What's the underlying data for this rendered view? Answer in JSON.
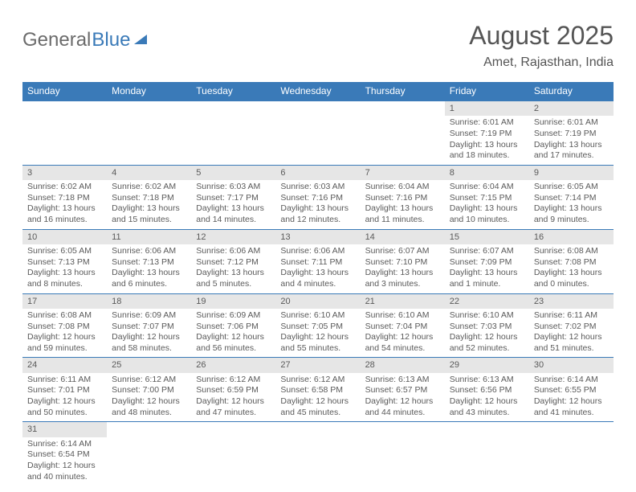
{
  "logo": {
    "part1": "General",
    "part2": "Blue"
  },
  "header": {
    "month": "August 2025",
    "location": "Amet, Rajasthan, India"
  },
  "colors": {
    "header_bg": "#3a7ab8",
    "header_text": "#ffffff",
    "daynum_bg": "#e6e6e6",
    "row_border": "#3a7ab8",
    "text": "#5a5a5a",
    "logo_gray": "#6b6b6b",
    "logo_blue": "#3a7ab8"
  },
  "fonts": {
    "month_size_pt": 24,
    "location_size_pt": 12,
    "dayheader_size_pt": 9,
    "body_size_pt": 8
  },
  "calendar": {
    "day_headers": [
      "Sunday",
      "Monday",
      "Tuesday",
      "Wednesday",
      "Thursday",
      "Friday",
      "Saturday"
    ],
    "weeks": [
      [
        null,
        null,
        null,
        null,
        null,
        {
          "n": "1",
          "sunrise": "6:01 AM",
          "sunset": "7:19 PM",
          "daylight": "13 hours and 18 minutes."
        },
        {
          "n": "2",
          "sunrise": "6:01 AM",
          "sunset": "7:19 PM",
          "daylight": "13 hours and 17 minutes."
        }
      ],
      [
        {
          "n": "3",
          "sunrise": "6:02 AM",
          "sunset": "7:18 PM",
          "daylight": "13 hours and 16 minutes."
        },
        {
          "n": "4",
          "sunrise": "6:02 AM",
          "sunset": "7:18 PM",
          "daylight": "13 hours and 15 minutes."
        },
        {
          "n": "5",
          "sunrise": "6:03 AM",
          "sunset": "7:17 PM",
          "daylight": "13 hours and 14 minutes."
        },
        {
          "n": "6",
          "sunrise": "6:03 AM",
          "sunset": "7:16 PM",
          "daylight": "13 hours and 12 minutes."
        },
        {
          "n": "7",
          "sunrise": "6:04 AM",
          "sunset": "7:16 PM",
          "daylight": "13 hours and 11 minutes."
        },
        {
          "n": "8",
          "sunrise": "6:04 AM",
          "sunset": "7:15 PM",
          "daylight": "13 hours and 10 minutes."
        },
        {
          "n": "9",
          "sunrise": "6:05 AM",
          "sunset": "7:14 PM",
          "daylight": "13 hours and 9 minutes."
        }
      ],
      [
        {
          "n": "10",
          "sunrise": "6:05 AM",
          "sunset": "7:13 PM",
          "daylight": "13 hours and 8 minutes."
        },
        {
          "n": "11",
          "sunrise": "6:06 AM",
          "sunset": "7:13 PM",
          "daylight": "13 hours and 6 minutes."
        },
        {
          "n": "12",
          "sunrise": "6:06 AM",
          "sunset": "7:12 PM",
          "daylight": "13 hours and 5 minutes."
        },
        {
          "n": "13",
          "sunrise": "6:06 AM",
          "sunset": "7:11 PM",
          "daylight": "13 hours and 4 minutes."
        },
        {
          "n": "14",
          "sunrise": "6:07 AM",
          "sunset": "7:10 PM",
          "daylight": "13 hours and 3 minutes."
        },
        {
          "n": "15",
          "sunrise": "6:07 AM",
          "sunset": "7:09 PM",
          "daylight": "13 hours and 1 minute."
        },
        {
          "n": "16",
          "sunrise": "6:08 AM",
          "sunset": "7:08 PM",
          "daylight": "13 hours and 0 minutes."
        }
      ],
      [
        {
          "n": "17",
          "sunrise": "6:08 AM",
          "sunset": "7:08 PM",
          "daylight": "12 hours and 59 minutes."
        },
        {
          "n": "18",
          "sunrise": "6:09 AM",
          "sunset": "7:07 PM",
          "daylight": "12 hours and 58 minutes."
        },
        {
          "n": "19",
          "sunrise": "6:09 AM",
          "sunset": "7:06 PM",
          "daylight": "12 hours and 56 minutes."
        },
        {
          "n": "20",
          "sunrise": "6:10 AM",
          "sunset": "7:05 PM",
          "daylight": "12 hours and 55 minutes."
        },
        {
          "n": "21",
          "sunrise": "6:10 AM",
          "sunset": "7:04 PM",
          "daylight": "12 hours and 54 minutes."
        },
        {
          "n": "22",
          "sunrise": "6:10 AM",
          "sunset": "7:03 PM",
          "daylight": "12 hours and 52 minutes."
        },
        {
          "n": "23",
          "sunrise": "6:11 AM",
          "sunset": "7:02 PM",
          "daylight": "12 hours and 51 minutes."
        }
      ],
      [
        {
          "n": "24",
          "sunrise": "6:11 AM",
          "sunset": "7:01 PM",
          "daylight": "12 hours and 50 minutes."
        },
        {
          "n": "25",
          "sunrise": "6:12 AM",
          "sunset": "7:00 PM",
          "daylight": "12 hours and 48 minutes."
        },
        {
          "n": "26",
          "sunrise": "6:12 AM",
          "sunset": "6:59 PM",
          "daylight": "12 hours and 47 minutes."
        },
        {
          "n": "27",
          "sunrise": "6:12 AM",
          "sunset": "6:58 PM",
          "daylight": "12 hours and 45 minutes."
        },
        {
          "n": "28",
          "sunrise": "6:13 AM",
          "sunset": "6:57 PM",
          "daylight": "12 hours and 44 minutes."
        },
        {
          "n": "29",
          "sunrise": "6:13 AM",
          "sunset": "6:56 PM",
          "daylight": "12 hours and 43 minutes."
        },
        {
          "n": "30",
          "sunrise": "6:14 AM",
          "sunset": "6:55 PM",
          "daylight": "12 hours and 41 minutes."
        }
      ],
      [
        {
          "n": "31",
          "sunrise": "6:14 AM",
          "sunset": "6:54 PM",
          "daylight": "12 hours and 40 minutes."
        },
        null,
        null,
        null,
        null,
        null,
        null
      ]
    ]
  }
}
